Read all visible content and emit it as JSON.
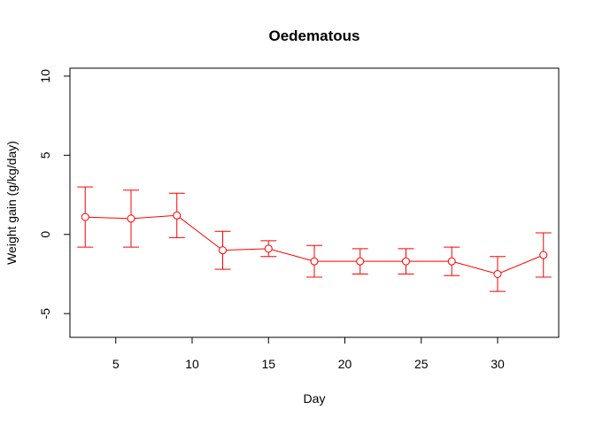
{
  "chart_data": {
    "type": "line",
    "title": "Oedematous",
    "xlabel": "Day",
    "ylabel": "Weight gain (g/kg/day)",
    "xlim": [
      2,
      34
    ],
    "ylim": [
      -6.5,
      10.5
    ],
    "x_ticks": [
      5,
      10,
      15,
      20,
      25,
      30
    ],
    "y_ticks": [
      -5,
      0,
      5,
      10
    ],
    "grid": false,
    "colors": {
      "series": "#ff0000",
      "marker_fill": "#ffffff"
    },
    "series": [
      {
        "x": [
          3,
          6,
          9,
          12,
          15,
          18,
          21,
          24,
          27,
          30,
          33
        ],
        "y": [
          1.1,
          1.0,
          1.2,
          -1.0,
          -0.9,
          -1.7,
          -1.7,
          -1.7,
          -1.7,
          -2.5,
          -1.3
        ],
        "lower": [
          -0.8,
          -0.8,
          -0.2,
          -2.2,
          -1.4,
          -2.7,
          -2.5,
          -2.5,
          -2.6,
          -3.6,
          -2.7
        ],
        "upper": [
          3.0,
          2.8,
          2.6,
          0.2,
          -0.4,
          -0.7,
          -0.9,
          -0.9,
          -0.8,
          -1.4,
          0.1
        ]
      }
    ]
  }
}
